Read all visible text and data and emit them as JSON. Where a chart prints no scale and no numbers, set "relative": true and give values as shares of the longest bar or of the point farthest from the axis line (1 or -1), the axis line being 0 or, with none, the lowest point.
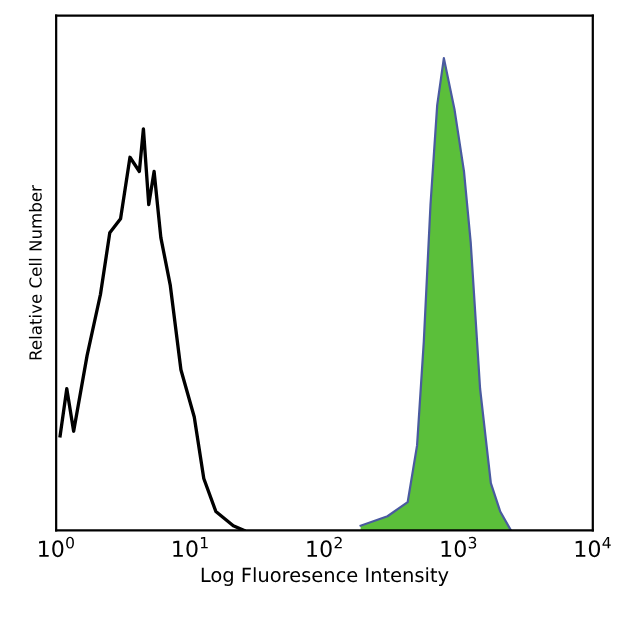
{
  "chart_data": {
    "type": "line",
    "relative": true,
    "xlabel": "Log Fluoresence Intensity",
    "ylabel": "Relative Cell Number",
    "log": "x",
    "xlim": [
      1,
      10000
    ],
    "xticks": [
      {
        "value": 1,
        "label": "10$^{0}$"
      },
      {
        "value": 10,
        "label": "10$^{1}$"
      },
      {
        "value": 100,
        "label": "10$^{2}$"
      },
      {
        "value": 1000,
        "label": "10$^{3}$"
      },
      {
        "value": 10000,
        "label": "10$^{4}$"
      }
    ],
    "tick_labels": "x",
    "grid": false,
    "legend": false,
    "series": [
      {
        "color": "#000000",
        "x": [
          1.07,
          1.2,
          1.35,
          1.7,
          2.14,
          2.51,
          3.02,
          3.55,
          4.17,
          4.47,
          4.9,
          5.37,
          6.03,
          7.08,
          8.51,
          10.7,
          12.6,
          15.5,
          20.9,
          25.1
        ],
        "values": [
          0.2,
          0.3,
          0.21,
          0.37,
          0.5,
          0.63,
          0.66,
          0.79,
          0.76,
          0.85,
          0.69,
          0.76,
          0.62,
          0.52,
          0.34,
          0.24,
          0.11,
          0.04,
          0.01,
          0
        ]
      },
      {
        "type": "area",
        "color": "#5bbf3a",
        "x": [
          186,
          295,
          417,
          490,
          550,
          617,
          692,
          776,
          933,
          1096,
          1230,
          1445,
          1738,
          2042,
          2455
        ],
        "values": [
          0.01,
          0.03,
          0.06,
          0.18,
          0.4,
          0.69,
          0.9,
          1.0,
          0.89,
          0.76,
          0.61,
          0.3,
          0.1,
          0.04,
          0
        ]
      }
    ]
  }
}
